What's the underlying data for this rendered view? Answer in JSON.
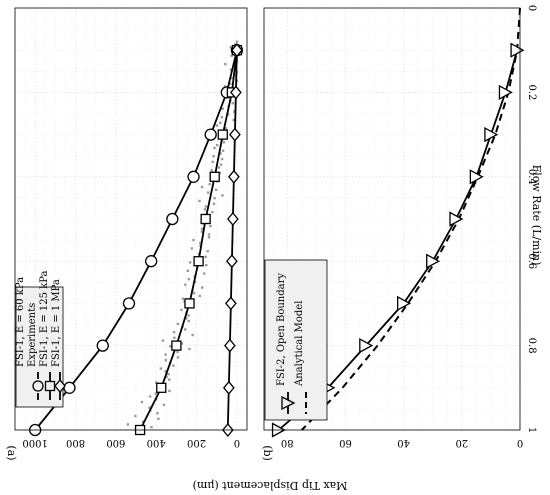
{
  "chart_data": [
    {
      "type": "line",
      "panel_label": "(a)",
      "xlabel": "Flow Rate (L/min)",
      "ylabel": "Max Tip Displacement (μm)",
      "xlim": [
        0,
        1
      ],
      "ylim": [
        -50,
        1100
      ],
      "x_ticks": [
        "0",
        "0.2",
        "0.4",
        "0.6",
        "0.8",
        "1"
      ],
      "y_ticks": [
        "0",
        "200",
        "400",
        "600",
        "800",
        "1000"
      ],
      "grid": true,
      "legend_position": "bottom-right",
      "series": [
        {
          "name": "FSI-1, E = 60 kPa",
          "marker": "circle",
          "x": [
            0.1,
            0.2,
            0.3,
            0.4,
            0.5,
            0.6,
            0.7,
            0.8,
            0.9,
            1.0
          ],
          "y": [
            0,
            50,
            130,
            215,
            320,
            425,
            535,
            665,
            830,
            1000
          ]
        },
        {
          "name": "Experiments",
          "marker": "dot"
        },
        {
          "name": "FSI-1, E = 125 kPa",
          "marker": "square",
          "x": [
            0.1,
            0.2,
            0.3,
            0.4,
            0.5,
            0.6,
            0.7,
            0.8,
            0.9,
            1.0
          ],
          "y": [
            0,
            25,
            70,
            110,
            155,
            190,
            235,
            300,
            375,
            480
          ]
        },
        {
          "name": "FSI-1, E = 1 MPa",
          "marker": "diamond",
          "x": [
            0.1,
            0.2,
            0.3,
            0.4,
            0.5,
            0.6,
            0.7,
            0.8,
            0.9,
            1.0
          ],
          "y": [
            0,
            5,
            10,
            15,
            20,
            25,
            30,
            35,
            40,
            45
          ]
        }
      ]
    },
    {
      "type": "line",
      "panel_label": "(b)",
      "xlabel": "Flow Rate (L/min)",
      "ylabel": "Max Tip Displacement (μm)",
      "xlim": [
        0,
        1
      ],
      "ylim": [
        0,
        88
      ],
      "x_ticks": [
        "0",
        "0.2",
        "0.4",
        "0.6",
        "0.8",
        "1"
      ],
      "y_ticks": [
        "0",
        "20",
        "40",
        "60",
        "80"
      ],
      "grid": true,
      "legend_position": "bottom-right",
      "series": [
        {
          "name": "FSI-2, Open Boundary",
          "marker": "triangle",
          "x": [
            0.1,
            0.2,
            0.3,
            0.4,
            0.5,
            0.6,
            0.7,
            0.8,
            0.9,
            1.0
          ],
          "y": [
            1,
            5,
            10,
            15,
            22,
            30,
            40,
            53,
            66,
            83
          ]
        },
        {
          "name": "Analytical Model",
          "marker": "none",
          "style": "dashed",
          "x": [
            0,
            0.1,
            0.2,
            0.3,
            0.4,
            0.5,
            0.6,
            0.7,
            0.8,
            0.9,
            1.0
          ],
          "y": [
            0,
            1,
            4,
            8.5,
            14.5,
            21,
            29,
            38.5,
            49,
            61,
            75
          ]
        }
      ]
    }
  ]
}
